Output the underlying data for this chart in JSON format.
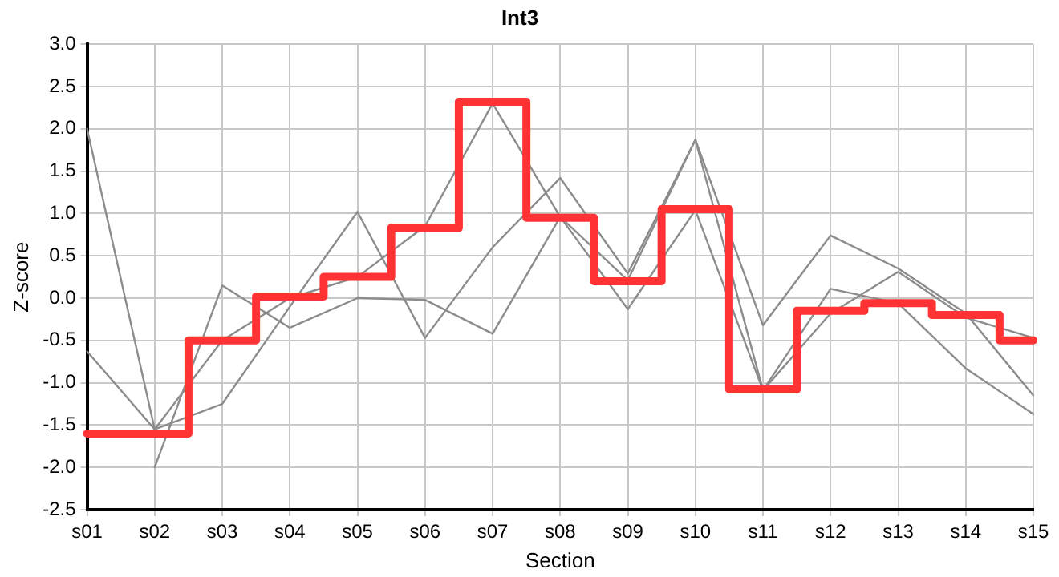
{
  "chart_data": {
    "type": "line",
    "title": "Int3",
    "xlabel": "Section",
    "ylabel": "Z-score",
    "categories": [
      "s01",
      "s02",
      "s03",
      "s04",
      "s05",
      "s06",
      "s07",
      "s08",
      "s09",
      "s10",
      "s11",
      "s12",
      "s13",
      "s14",
      "s15"
    ],
    "series": [
      {
        "type": "line",
        "color": "#8c8c8c",
        "values": [
          2.0,
          -1.55,
          -0.5,
          0.0,
          0.25,
          0.85,
          2.3,
          0.96,
          0.21,
          1.87,
          -1.09,
          -0.18,
          0.31,
          -0.23,
          -0.47
        ]
      },
      {
        "type": "line",
        "color": "#8c8c8c",
        "values": [
          -0.63,
          -1.55,
          -1.25,
          -0.1,
          1.02,
          -0.47,
          0.6,
          1.42,
          0.29,
          1.87,
          -0.32,
          0.74,
          0.35,
          -0.18,
          -1.15
        ]
      },
      {
        "type": "line",
        "color": "#8c8c8c",
        "values": [
          null,
          -2.0,
          0.15,
          -0.35,
          0.0,
          -0.02,
          -0.42,
          0.96,
          -0.13,
          1.04,
          -1.09,
          0.11,
          -0.06,
          -0.83,
          -1.37
        ]
      },
      {
        "type": "step",
        "color": "#ff3333",
        "values": [
          -1.6,
          -1.6,
          -0.5,
          0.02,
          0.25,
          0.83,
          2.32,
          0.95,
          0.2,
          1.05,
          -1.08,
          -0.15,
          -0.06,
          -0.2,
          -0.5
        ]
      }
    ],
    "ylim": [
      -2.5,
      3.0
    ],
    "yticks": [
      {
        "value": -2.5,
        "label": "-2.5"
      },
      {
        "value": -2.0,
        "label": "-2.0"
      },
      {
        "value": -1.5,
        "label": "-1.5"
      },
      {
        "value": -1.0,
        "label": "-1.0"
      },
      {
        "value": -0.5,
        "label": "-0.5"
      },
      {
        "value": 0,
        "label": "0.0"
      },
      {
        "value": 0.5,
        "label": "0.5"
      },
      {
        "value": 1.0,
        "label": "1.0"
      },
      {
        "value": 1.5,
        "label": "1.5"
      },
      {
        "value": 2.0,
        "label": "2.0"
      },
      {
        "value": 2.5,
        "label": "2.5"
      },
      {
        "value": 3.0,
        "label": "3.0"
      }
    ],
    "grid": true,
    "legend": false,
    "marker": "none"
  }
}
